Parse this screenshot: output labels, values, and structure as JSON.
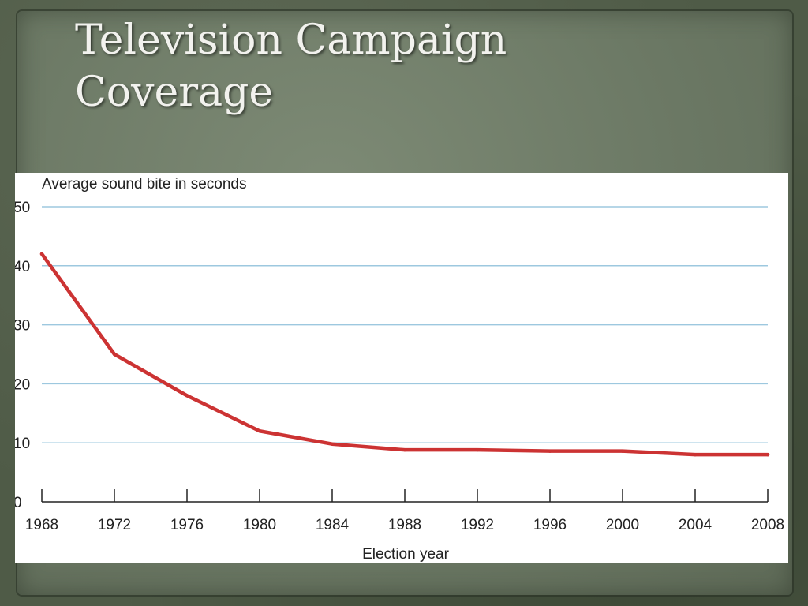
{
  "slide": {
    "title_lines": [
      "Television Campaign",
      "Coverage"
    ]
  },
  "chart_data": {
    "type": "line",
    "title": "",
    "ylabel": "Average sound bite in seconds",
    "xlabel": "Election year",
    "ylim": [
      0,
      50
    ],
    "yticks": [
      0,
      10,
      20,
      30,
      40,
      50
    ],
    "grid": true,
    "categories": [
      "1968",
      "1972",
      "1976",
      "1980",
      "1984",
      "1988",
      "1992",
      "1996",
      "2000",
      "2004",
      "2008"
    ],
    "series": [
      {
        "values": [
          42.0,
          25.0,
          18.0,
          12.0,
          9.8,
          8.8,
          8.8,
          8.6,
          8.6,
          8.0,
          8.0
        ],
        "color": "#cc3333"
      }
    ],
    "colors": {
      "grid": "#9dc8df",
      "axis": "#222222",
      "text": "#222222"
    }
  }
}
